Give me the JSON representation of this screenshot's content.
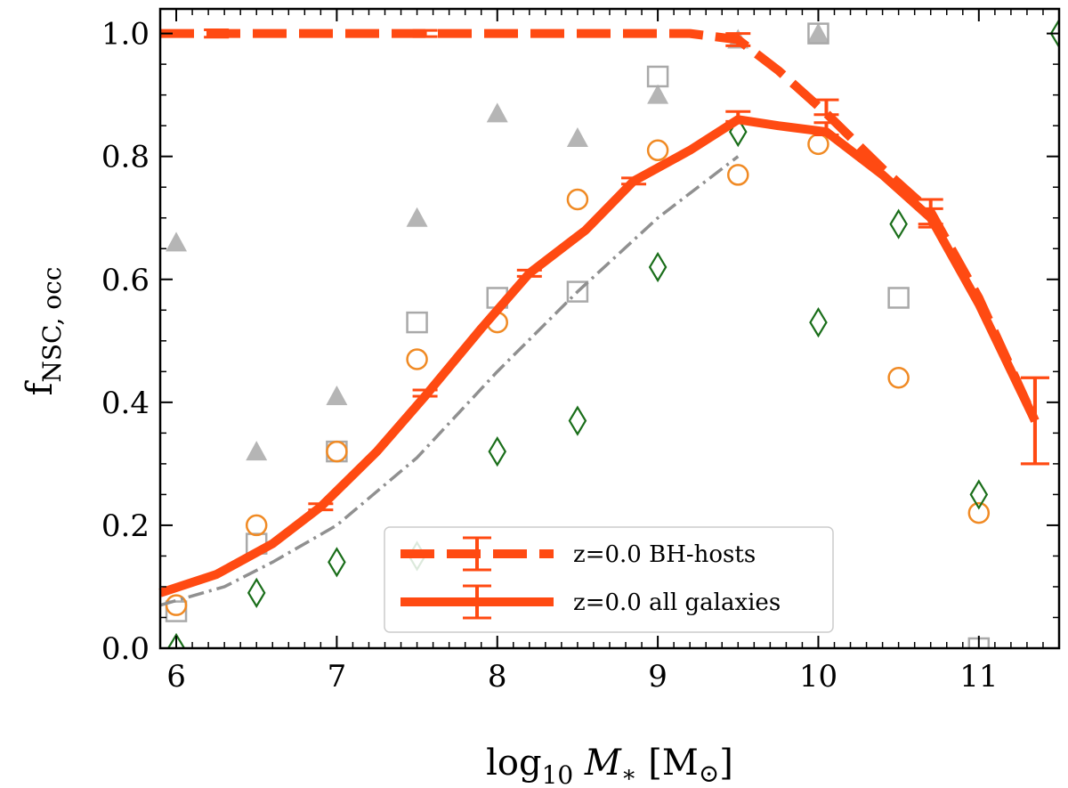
{
  "chart_data": {
    "type": "line",
    "xlabel": {
      "base": "log",
      "sub": "10",
      "main": " M",
      "star": "∗",
      "unit_open": " [M",
      "unit_sym": "⊙",
      "unit_close": "]"
    },
    "ylabel": {
      "main": "f",
      "sub": "NSC, occ"
    },
    "xlim": [
      5.9,
      11.5
    ],
    "ylim": [
      0.0,
      1.04
    ],
    "xticks": [
      6,
      7,
      8,
      9,
      10,
      11
    ],
    "xtick_labels": [
      "6",
      "7",
      "8",
      "9",
      "10",
      "11"
    ],
    "yticks": [
      0.0,
      0.2,
      0.4,
      0.6,
      0.8,
      1.0
    ],
    "ytick_labels": [
      "0.0",
      "0.2",
      "0.4",
      "0.6",
      "0.8",
      "1.0"
    ],
    "legend": {
      "position": "lower-center",
      "entries": [
        "z=0.0 BH-hosts",
        "z=0.0 all galaxies"
      ]
    },
    "series": [
      {
        "name": "z=0.0 BH-hosts",
        "style": "dashed",
        "color": "#ff4a12",
        "x": [
          5.9,
          6.25,
          6.6,
          6.9,
          7.25,
          7.55,
          7.9,
          8.2,
          8.55,
          8.85,
          9.2,
          9.5,
          9.75,
          10.05,
          10.4,
          10.7,
          11.0,
          11.35
        ],
        "y": [
          1.0,
          1.0,
          1.0,
          1.0,
          1.0,
          1.0,
          1.0,
          1.0,
          1.0,
          1.0,
          1.0,
          0.99,
          0.94,
          0.87,
          0.78,
          0.71,
          0.57,
          0.37
        ],
        "errors": [
          {
            "x": 6.25,
            "y": 1.0,
            "err": 0.006
          },
          {
            "x": 7.55,
            "y": 1.0,
            "err": 0.005
          },
          {
            "x": 9.5,
            "y": 0.99,
            "err": 0.01
          },
          {
            "x": 10.05,
            "y": 0.88,
            "err": 0.012
          },
          {
            "x": 10.7,
            "y": 0.71,
            "err": 0.02
          },
          {
            "x": 11.35,
            "y": 0.37,
            "err": 0.07
          }
        ]
      },
      {
        "name": "z=0.0 all galaxies",
        "style": "solid",
        "color": "#ff4a12",
        "x": [
          5.9,
          6.25,
          6.6,
          6.9,
          7.25,
          7.55,
          7.9,
          8.2,
          8.55,
          8.85,
          9.2,
          9.5,
          9.75,
          10.05,
          10.4,
          10.7,
          11.0,
          11.35
        ],
        "y": [
          0.09,
          0.12,
          0.17,
          0.23,
          0.32,
          0.41,
          0.52,
          0.61,
          0.68,
          0.76,
          0.81,
          0.86,
          0.85,
          0.84,
          0.77,
          0.7,
          0.56,
          0.37
        ],
        "errors": [
          {
            "x": 6.9,
            "y": 0.23,
            "err": 0.005
          },
          {
            "x": 7.55,
            "y": 0.415,
            "err": 0.005
          },
          {
            "x": 8.2,
            "y": 0.61,
            "err": 0.005
          },
          {
            "x": 8.85,
            "y": 0.76,
            "err": 0.005
          },
          {
            "x": 9.5,
            "y": 0.865,
            "err": 0.008
          },
          {
            "x": 10.05,
            "y": 0.845,
            "err": 0.01
          },
          {
            "x": 10.7,
            "y": 0.7,
            "err": 0.015
          },
          {
            "x": 11.35,
            "y": 0.37,
            "err": 0.07
          }
        ]
      },
      {
        "style": "dashdot",
        "color": "#909090",
        "x": [
          5.9,
          6.3,
          6.6,
          7.0,
          7.5,
          8.0,
          8.5,
          9.0,
          9.5
        ],
        "y": [
          0.07,
          0.1,
          0.14,
          0.2,
          0.31,
          0.45,
          0.58,
          0.7,
          0.8
        ]
      }
    ],
    "scatter": [
      {
        "marker": "triangle-filled",
        "color": "#b5b5b5",
        "x": [
          6.0,
          6.5,
          7.0,
          7.5,
          8.0,
          8.5,
          9.0,
          9.5,
          10.0
        ],
        "y": [
          0.66,
          0.32,
          0.41,
          0.7,
          0.87,
          0.83,
          0.9,
          0.99,
          1.0
        ]
      },
      {
        "marker": "square-open",
        "color": "#a9a9a9",
        "x": [
          6.0,
          6.5,
          7.0,
          7.5,
          8.0,
          8.5,
          9.0,
          10.0,
          10.5,
          11.0
        ],
        "y": [
          0.06,
          0.17,
          0.32,
          0.53,
          0.57,
          0.58,
          0.93,
          1.0,
          0.57,
          0.0
        ]
      },
      {
        "marker": "circle-open",
        "color": "#f08a24",
        "x": [
          6.0,
          6.5,
          7.0,
          7.5,
          8.0,
          8.5,
          9.0,
          9.5,
          10.0,
          10.5,
          11.0
        ],
        "y": [
          0.07,
          0.2,
          0.32,
          0.47,
          0.53,
          0.73,
          0.81,
          0.77,
          0.82,
          0.44,
          0.22
        ]
      },
      {
        "marker": "diamond-open",
        "color": "#1a6e1a",
        "x": [
          6.0,
          6.5,
          7.0,
          7.5,
          8.0,
          8.5,
          9.0,
          9.5,
          10.0,
          10.5,
          11.0,
          11.5
        ],
        "y": [
          0.0,
          0.09,
          0.14,
          0.15,
          0.32,
          0.37,
          0.62,
          0.84,
          0.53,
          0.69,
          0.25,
          1.0
        ]
      }
    ]
  }
}
